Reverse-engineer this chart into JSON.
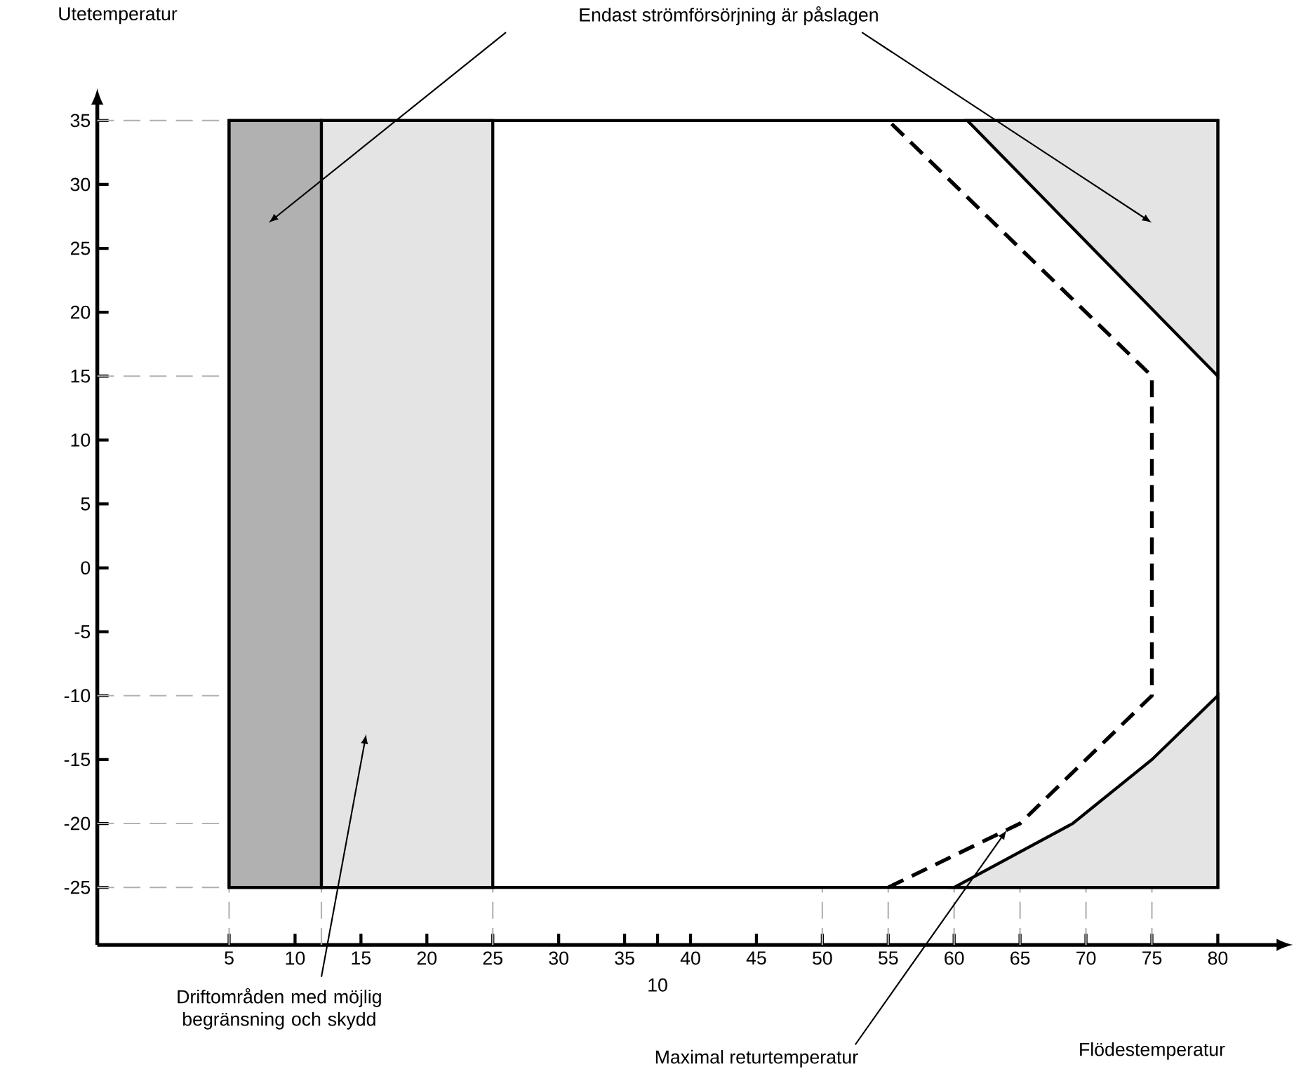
{
  "chart_data": {
    "type": "line",
    "xlabel": "Flödestemperatur",
    "ylabel": "Utetemperatur",
    "xlim": [
      -5,
      85
    ],
    "ylim": [
      -29.5,
      36.5
    ],
    "xticks": [
      5,
      10,
      15,
      20,
      25,
      30,
      35,
      {
        "value": 37.5,
        "label": null
      },
      40,
      45,
      50,
      55,
      60,
      65,
      70,
      75,
      80
    ],
    "yticks": [
      -25,
      -20,
      -15,
      -10,
      -5,
      0,
      5,
      10,
      15,
      20,
      25,
      30,
      35
    ],
    "ref_lines": [
      {
        "axis": "x",
        "value": 5,
        "color": "#b3b3b3",
        "line_style": "dashed"
      },
      {
        "axis": "x",
        "value": 12,
        "color": "#b3b3b3",
        "line_style": "dashed"
      },
      {
        "axis": "x",
        "value": 25,
        "color": "#b3b3b3",
        "line_style": "dashed"
      },
      {
        "axis": "x",
        "value": 50,
        "color": "#b3b3b3",
        "line_style": "dashed"
      },
      {
        "axis": "x",
        "value": 55,
        "color": "#b3b3b3",
        "line_style": "dashed"
      },
      {
        "axis": "x",
        "value": 60,
        "color": "#b3b3b3",
        "line_style": "dashed"
      },
      {
        "axis": "x",
        "value": 65,
        "color": "#b3b3b3",
        "line_style": "dashed"
      },
      {
        "axis": "x",
        "value": 70,
        "color": "#b3b3b3",
        "line_style": "dashed"
      },
      {
        "axis": "x",
        "value": 75,
        "color": "#b3b3b3",
        "line_style": "dashed"
      },
      {
        "axis": "y",
        "value": 35,
        "color": "#b3b3b3",
        "line_style": "dashed"
      },
      {
        "axis": "y",
        "value": 15,
        "color": "#b3b3b3",
        "line_style": "dashed"
      },
      {
        "axis": "y",
        "value": -10,
        "color": "#b3b3b3",
        "line_style": "dashed"
      },
      {
        "axis": "y",
        "value": -20,
        "color": "#b3b3b3",
        "line_style": "dashed"
      },
      {
        "axis": "y",
        "value": -25,
        "color": "#b3b3b3",
        "line_style": "dashed"
      }
    ],
    "series": [
      {
        "type": "area",
        "color": "#ffffff",
        "x": [
          5,
          80,
          80,
          5
        ],
        "values": [
          35,
          35,
          -25,
          -25
        ]
      },
      {
        "type": "area",
        "color": "#b1b1b1",
        "x": [
          5,
          12,
          12,
          5
        ],
        "values": [
          -25,
          -25,
          35,
          35
        ]
      },
      {
        "type": "area",
        "color": "#e4e4e4",
        "x": [
          12,
          25,
          25,
          12
        ],
        "values": [
          -25,
          -25,
          35,
          35
        ]
      },
      {
        "type": "area",
        "color": "#e4e4e4",
        "x": [
          61,
          80,
          80
        ],
        "values": [
          35,
          35,
          15
        ]
      },
      {
        "type": "area",
        "color": "#e4e4e4",
        "x": [
          60,
          69,
          75,
          80,
          80
        ],
        "values": [
          -25,
          -20,
          -15,
          -10,
          -25
        ]
      },
      {
        "color": "#000000",
        "line_style": "dashed",
        "x": [
          55,
          65,
          75,
          75,
          55
        ],
        "values": [
          -25,
          -20,
          -10,
          15,
          35
        ]
      }
    ],
    "annotations": [
      {
        "text": "Endast strömförsörjning är påslagen",
        "x": 75,
        "y": 27
      },
      "Driftområden med möjlig begränsning och skydd",
      {
        "text": "Maximal returtemperatur",
        "x": 64,
        "y": -20.5
      },
      "10"
    ]
  }
}
